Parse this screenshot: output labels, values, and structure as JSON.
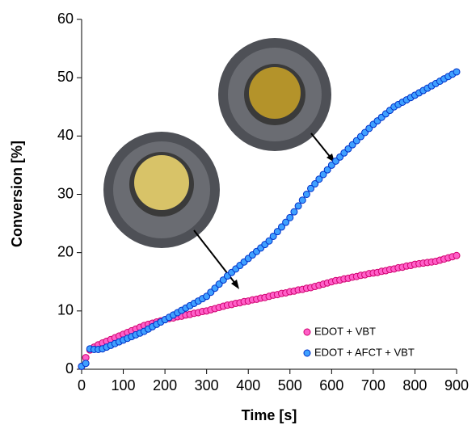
{
  "chart_data": {
    "type": "scatter",
    "x_label": "Time [s]",
    "y_label": "Conversion [%]",
    "xlim": [
      0,
      900
    ],
    "ylim": [
      0,
      60
    ],
    "xticks": [
      0,
      100,
      200,
      300,
      400,
      500,
      600,
      700,
      800,
      900
    ],
    "yticks": [
      0,
      10,
      20,
      30,
      40,
      50,
      60
    ],
    "grid": false,
    "legend": "lower right",
    "x": [
      0,
      10,
      20,
      30,
      40,
      50,
      60,
      70,
      80,
      90,
      100,
      110,
      120,
      130,
      140,
      150,
      160,
      170,
      180,
      190,
      200,
      210,
      220,
      230,
      240,
      250,
      260,
      270,
      280,
      290,
      300,
      310,
      320,
      330,
      340,
      350,
      360,
      370,
      380,
      390,
      400,
      410,
      420,
      430,
      440,
      450,
      460,
      470,
      480,
      490,
      500,
      510,
      520,
      530,
      540,
      550,
      560,
      570,
      580,
      590,
      600,
      610,
      620,
      630,
      640,
      650,
      660,
      670,
      680,
      690,
      700,
      710,
      720,
      730,
      740,
      750,
      760,
      770,
      780,
      790,
      800,
      810,
      820,
      830,
      840,
      850,
      860,
      870,
      880,
      890,
      900
    ],
    "series": [
      {
        "name": "EDOT + VBT",
        "color": "#ff5fc8",
        "edge": "#d0006f",
        "values": [
          0.5,
          2.0,
          3.3,
          3.8,
          4.2,
          4.5,
          4.8,
          5.1,
          5.4,
          5.7,
          6.0,
          6.3,
          6.6,
          6.9,
          7.2,
          7.5,
          7.7,
          7.9,
          8.1,
          8.3,
          8.5,
          8.7,
          8.8,
          9.0,
          9.1,
          9.3,
          9.4,
          9.6,
          9.7,
          9.9,
          10.0,
          10.2,
          10.4,
          10.6,
          10.8,
          11.0,
          11.1,
          11.3,
          11.4,
          11.6,
          11.7,
          11.9,
          12.0,
          12.2,
          12.3,
          12.5,
          12.7,
          12.8,
          13.0,
          13.1,
          13.3,
          13.4,
          13.6,
          13.7,
          13.9,
          14.0,
          14.2,
          14.4,
          14.6,
          14.8,
          15.0,
          15.2,
          15.3,
          15.5,
          15.6,
          15.8,
          15.9,
          16.1,
          16.2,
          16.4,
          16.5,
          16.6,
          16.8,
          16.9,
          17.1,
          17.2,
          17.4,
          17.5,
          17.7,
          17.8,
          18.0,
          18.1,
          18.2,
          18.3,
          18.4,
          18.5,
          18.7,
          18.9,
          19.1,
          19.3,
          19.5
        ]
      },
      {
        "name": "EDOT + AFCT + VBT",
        "color": "#3fa0ff",
        "edge": "#0030c8",
        "values": [
          0.5,
          1.0,
          3.5,
          3.4,
          3.4,
          3.5,
          3.8,
          4.1,
          4.4,
          4.7,
          5.0,
          5.3,
          5.6,
          5.9,
          6.2,
          6.5,
          6.9,
          7.3,
          7.7,
          8.1,
          8.5,
          8.9,
          9.3,
          9.7,
          10.1,
          10.5,
          10.9,
          11.3,
          11.7,
          12.1,
          12.5,
          13.2,
          13.9,
          14.6,
          15.3,
          16.0,
          16.6,
          17.2,
          17.8,
          18.4,
          19.0,
          19.6,
          20.2,
          20.8,
          21.4,
          22.0,
          22.8,
          23.6,
          24.4,
          25.2,
          26.0,
          27.0,
          28.0,
          29.0,
          30.0,
          31.0,
          31.8,
          32.6,
          33.4,
          34.2,
          35.0,
          35.7,
          36.4,
          37.1,
          37.8,
          38.5,
          39.2,
          39.9,
          40.6,
          41.3,
          42.0,
          42.6,
          43.2,
          43.8,
          44.4,
          45.0,
          45.4,
          45.8,
          46.2,
          46.6,
          47.0,
          47.4,
          47.8,
          48.2,
          48.6,
          49.0,
          49.4,
          49.8,
          50.2,
          50.6,
          51.0
        ]
      }
    ]
  }
}
